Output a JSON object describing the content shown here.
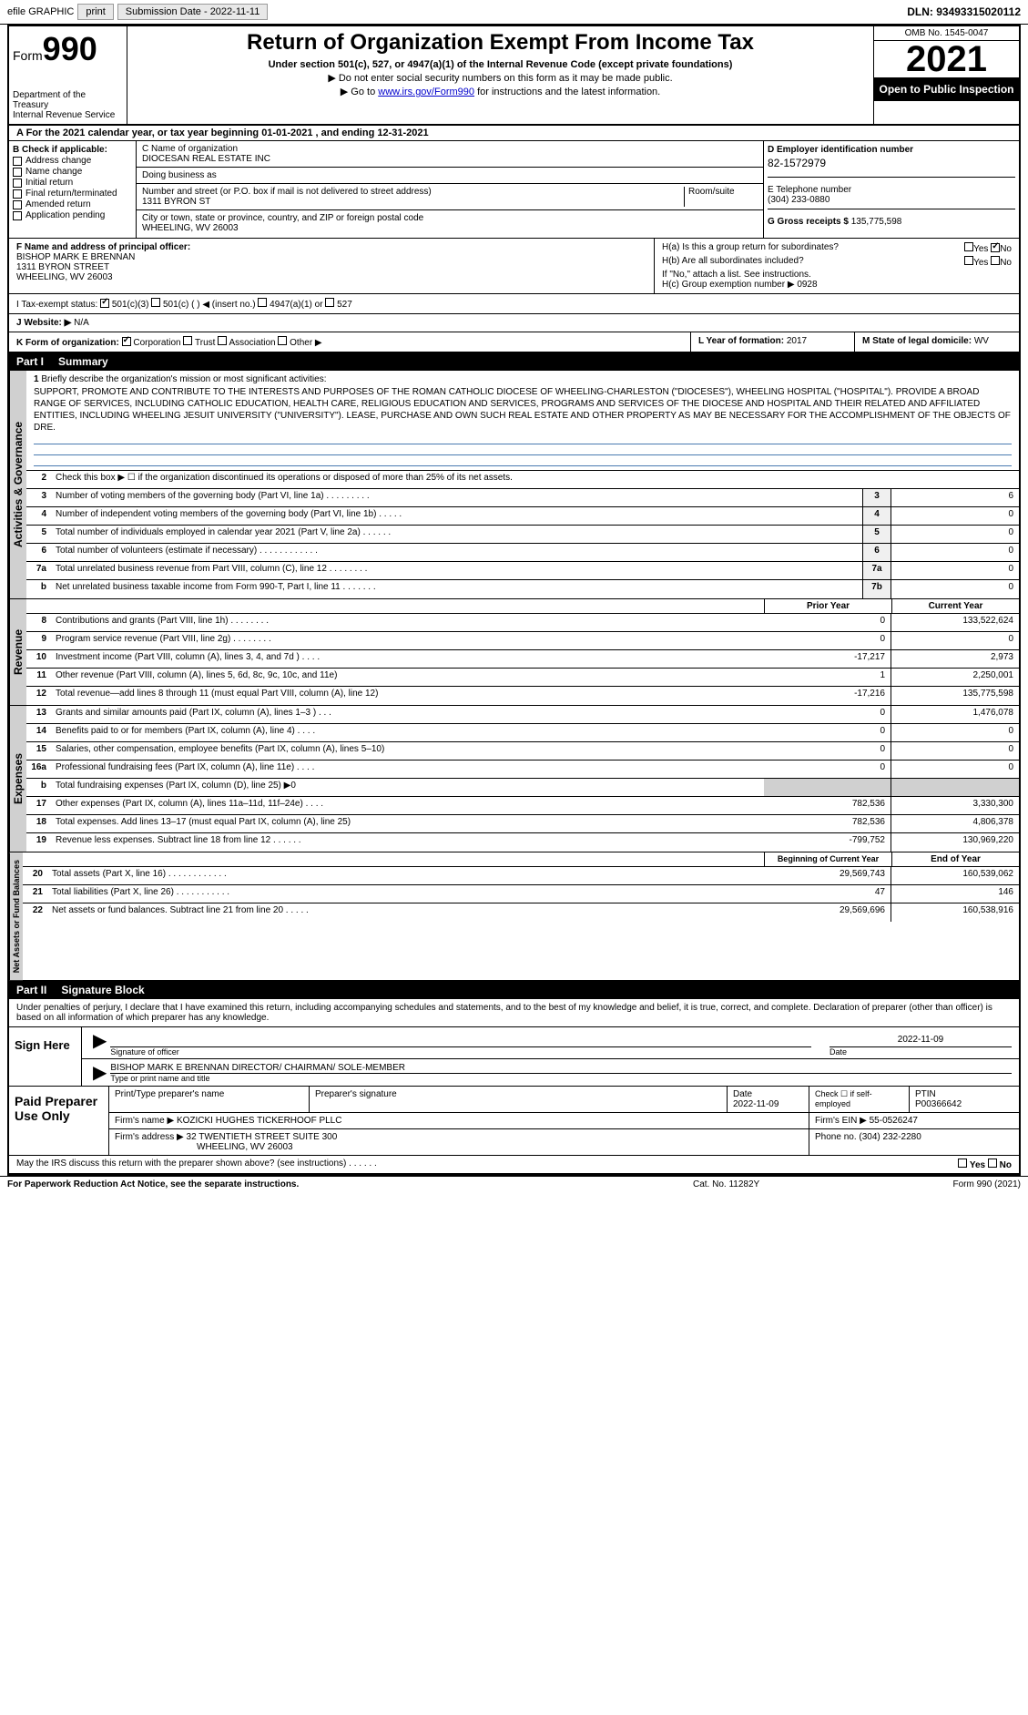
{
  "top": {
    "efile": "efile GRAPHIC",
    "print_btn": "print",
    "submission_label": "Submission Date - 2022-11-11",
    "dln": "DLN: 93493315020112"
  },
  "header": {
    "form_prefix": "Form",
    "form_num": "990",
    "dept": "Department of the Treasury",
    "irs": "Internal Revenue Service",
    "title": "Return of Organization Exempt From Income Tax",
    "sub": "Under section 501(c), 527, or 4947(a)(1) of the Internal Revenue Code (except private foundations)",
    "note1": "▶ Do not enter social security numbers on this form as it may be made public.",
    "note2_pre": "▶ Go to ",
    "note2_link": "www.irs.gov/Form990",
    "note2_post": " for instructions and the latest information.",
    "omb": "OMB No. 1545-0047",
    "year": "2021",
    "open": "Open to Public Inspection"
  },
  "section_a": "A For the 2021 calendar year, or tax year beginning 01-01-2021   , and ending 12-31-2021",
  "section_b": {
    "label": "B Check if applicable:",
    "items": [
      "Address change",
      "Name change",
      "Initial return",
      "Final return/terminated",
      "Amended return",
      "Application pending"
    ]
  },
  "section_c": {
    "name_label": "C Name of organization",
    "name": "DIOCESAN REAL ESTATE INC",
    "dba_label": "Doing business as",
    "dba": "",
    "addr_label": "Number and street (or P.O. box if mail is not delivered to street address)",
    "room_label": "Room/suite",
    "addr": "1311 BYRON ST",
    "city_label": "City or town, state or province, country, and ZIP or foreign postal code",
    "city": "WHEELING, WV  26003"
  },
  "section_d": {
    "label": "D Employer identification number",
    "ein": "82-1572979",
    "e_label": "E Telephone number",
    "phone": "(304) 233-0880",
    "g_label": "G Gross receipts $",
    "g_val": "135,775,598"
  },
  "section_f": {
    "label": "F  Name and address of principal officer:",
    "name": "BISHOP MARK E BRENNAN",
    "addr1": "1311 BYRON STREET",
    "addr2": "WHEELING, WV  26003"
  },
  "section_h": {
    "ha_label": "H(a)  Is this a group return for subordinates?",
    "ha_yes": "Yes",
    "ha_no": "No",
    "hb_label": "H(b)  Are all subordinates included?",
    "hb_yes": "Yes",
    "hb_no": "No",
    "hb_note": "If \"No,\" attach a list. See instructions.",
    "hc_label": "H(c)  Group exemption number ▶",
    "hc_val": "0928"
  },
  "section_i": {
    "label": "I   Tax-exempt status:",
    "opts": [
      "501(c)(3)",
      "501(c) (  )  ◀ (insert no.)",
      "4947(a)(1) or",
      "527"
    ]
  },
  "section_j": {
    "label": "J   Website: ▶",
    "val": "N/A"
  },
  "section_k": {
    "label": "K Form of organization:",
    "opts": [
      "Corporation",
      "Trust",
      "Association",
      "Other ▶"
    ]
  },
  "section_l": {
    "label": "L Year of formation:",
    "val": "2017"
  },
  "section_m": {
    "label": "M State of legal domicile:",
    "val": "WV"
  },
  "part1": {
    "num": "Part I",
    "title": "Summary"
  },
  "mission": {
    "line1_num": "1",
    "line1_text": "Briefly describe the organization's mission or most significant activities:",
    "body": "SUPPORT, PROMOTE AND CONTRIBUTE TO THE INTERESTS AND PURPOSES OF THE ROMAN CATHOLIC DIOCESE OF WHEELING-CHARLESTON (\"DIOCESES\"), WHEELING HOSPITAL (\"HOSPITAL\"). PROVIDE A BROAD RANGE OF SERVICES, INCLUDING CATHOLIC EDUCATION, HEALTH CARE, RELIGIOUS EDUCATION AND SERVICES, PROGRAMS AND SERVICES OF THE DIOCESE AND HOSPITAL AND THEIR RELATED AND AFFILIATED ENTITIES, INCLUDING WHEELING JESUIT UNIVERSITY (\"UNIVERSITY\"). LEASE, PURCHASE AND OWN SUCH REAL ESTATE AND OTHER PROPERTY AS MAY BE NECESSARY FOR THE ACCOMPLISHMENT OF THE OBJECTS OF DRE."
  },
  "gov_lines": [
    {
      "n": "2",
      "t": "Check this box ▶ ☐ if the organization discontinued its operations or disposed of more than 25% of its net assets.",
      "box": "",
      "v": ""
    },
    {
      "n": "3",
      "t": "Number of voting members of the governing body (Part VI, line 1a)  .    .    .    .    .    .    .    .    .",
      "box": "3",
      "v": "6"
    },
    {
      "n": "4",
      "t": "Number of independent voting members of the governing body (Part VI, line 1b)   .    .    .    .    .",
      "box": "4",
      "v": "0"
    },
    {
      "n": "5",
      "t": "Total number of individuals employed in calendar year 2021 (Part V, line 2a)   .    .    .    .    .    .",
      "box": "5",
      "v": "0"
    },
    {
      "n": "6",
      "t": "Total number of volunteers (estimate if necessary)   .    .    .    .    .    .    .    .    .    .    .    .",
      "box": "6",
      "v": "0"
    },
    {
      "n": "7a",
      "t": "Total unrelated business revenue from Part VIII, column (C), line 12   .    .    .    .    .    .    .    .",
      "box": "7a",
      "v": "0"
    },
    {
      "n": "b",
      "t": "Net unrelated business taxable income from Form 990-T, Part I, line 11   .    .    .    .    .    .    .",
      "box": "7b",
      "v": "0"
    }
  ],
  "col_headers": {
    "prior": "Prior Year",
    "current": "Current Year"
  },
  "revenue_lines": [
    {
      "n": "8",
      "t": "Contributions and grants (Part VIII, line 1h)   .    .    .    .    .    .    .    .",
      "p": "0",
      "c": "133,522,624"
    },
    {
      "n": "9",
      "t": "Program service revenue (Part VIII, line 2g)   .    .    .    .    .    .    .    .",
      "p": "0",
      "c": "0"
    },
    {
      "n": "10",
      "t": "Investment income (Part VIII, column (A), lines 3, 4, and 7d )   .    .    .    .",
      "p": "-17,217",
      "c": "2,973"
    },
    {
      "n": "11",
      "t": "Other revenue (Part VIII, column (A), lines 5, 6d, 8c, 9c, 10c, and 11e)",
      "p": "1",
      "c": "2,250,001"
    },
    {
      "n": "12",
      "t": "Total revenue—add lines 8 through 11 (must equal Part VIII, column (A), line 12)",
      "p": "-17,216",
      "c": "135,775,598"
    }
  ],
  "expense_lines": [
    {
      "n": "13",
      "t": "Grants and similar amounts paid (Part IX, column (A), lines 1–3 )   .    .    .",
      "p": "0",
      "c": "1,476,078"
    },
    {
      "n": "14",
      "t": "Benefits paid to or for members (Part IX, column (A), line 4)   .    .    .    .",
      "p": "0",
      "c": "0"
    },
    {
      "n": "15",
      "t": "Salaries, other compensation, employee benefits (Part IX, column (A), lines 5–10)",
      "p": "0",
      "c": "0"
    },
    {
      "n": "16a",
      "t": "Professional fundraising fees (Part IX, column (A), line 11e)   .    .    .    .",
      "p": "0",
      "c": "0"
    },
    {
      "n": "b",
      "t": "Total fundraising expenses (Part IX, column (D), line 25) ▶0",
      "p": "",
      "c": "",
      "gray": true
    },
    {
      "n": "17",
      "t": "Other expenses (Part IX, column (A), lines 11a–11d, 11f–24e)   .    .    .    .",
      "p": "782,536",
      "c": "3,330,300"
    },
    {
      "n": "18",
      "t": "Total expenses. Add lines 13–17 (must equal Part IX, column (A), line 25)",
      "p": "782,536",
      "c": "4,806,378"
    },
    {
      "n": "19",
      "t": "Revenue less expenses. Subtract line 18 from line 12   .    .    .    .    .    .",
      "p": "-799,752",
      "c": "130,969,220"
    }
  ],
  "net_headers": {
    "begin": "Beginning of Current Year",
    "end": "End of Year"
  },
  "net_lines": [
    {
      "n": "20",
      "t": "Total assets (Part X, line 16)   .    .    .    .    .    .    .    .    .    .    .    .",
      "p": "29,569,743",
      "c": "160,539,062"
    },
    {
      "n": "21",
      "t": "Total liabilities (Part X, line 26)   .    .    .    .    .    .    .    .    .    .    .",
      "p": "47",
      "c": "146"
    },
    {
      "n": "22",
      "t": "Net assets or fund balances. Subtract line 21 from line 20   .    .    .    .    .",
      "p": "29,569,696",
      "c": "160,538,916"
    }
  ],
  "part2": {
    "num": "Part II",
    "title": "Signature Block"
  },
  "sig": {
    "perjury": "Under penalties of perjury, I declare that I have examined this return, including accompanying schedules and statements, and to the best of my knowledge and belief, it is true, correct, and complete. Declaration of preparer (other than officer) is based on all information of which preparer has any knowledge.",
    "sign_here": "Sign Here",
    "sig_officer": "Signature of officer",
    "date_label": "Date",
    "date_val": "2022-11-09",
    "name_title": "BISHOP MARK E BRENNAN  DIRECTOR/ CHAIRMAN/ SOLE-MEMBER",
    "name_label": "Type or print name and title"
  },
  "prep": {
    "label": "Paid Preparer Use Only",
    "h1": "Print/Type preparer's name",
    "h2": "Preparer's signature",
    "h3": "Date",
    "h3v": "2022-11-09",
    "h4": "Check ☐ if self-employed",
    "h5": "PTIN",
    "h5v": "P00366642",
    "firm_label": "Firm's name    ▶",
    "firm": "KOZICKI HUGHES TICKERHOOF PLLC",
    "firm_ein_label": "Firm's EIN ▶",
    "firm_ein": "55-0526247",
    "addr_label": "Firm's address ▶",
    "addr1": "32 TWENTIETH STREET SUITE 300",
    "addr2": "WHEELING, WV  26003",
    "phone_label": "Phone no.",
    "phone": "(304) 232-2280"
  },
  "discuss": {
    "text": "May the IRS discuss this return with the preparer shown above? (see instructions)   .    .    .    .    .    .",
    "yes": "Yes",
    "no": "No"
  },
  "footer": {
    "left": "For Paperwork Reduction Act Notice, see the separate instructions.",
    "mid": "Cat. No. 11282Y",
    "right": "Form 990 (2021)"
  },
  "side_labels": {
    "gov": "Activities & Governance",
    "rev": "Revenue",
    "exp": "Expenses",
    "net": "Net Assets or Fund Balances"
  }
}
